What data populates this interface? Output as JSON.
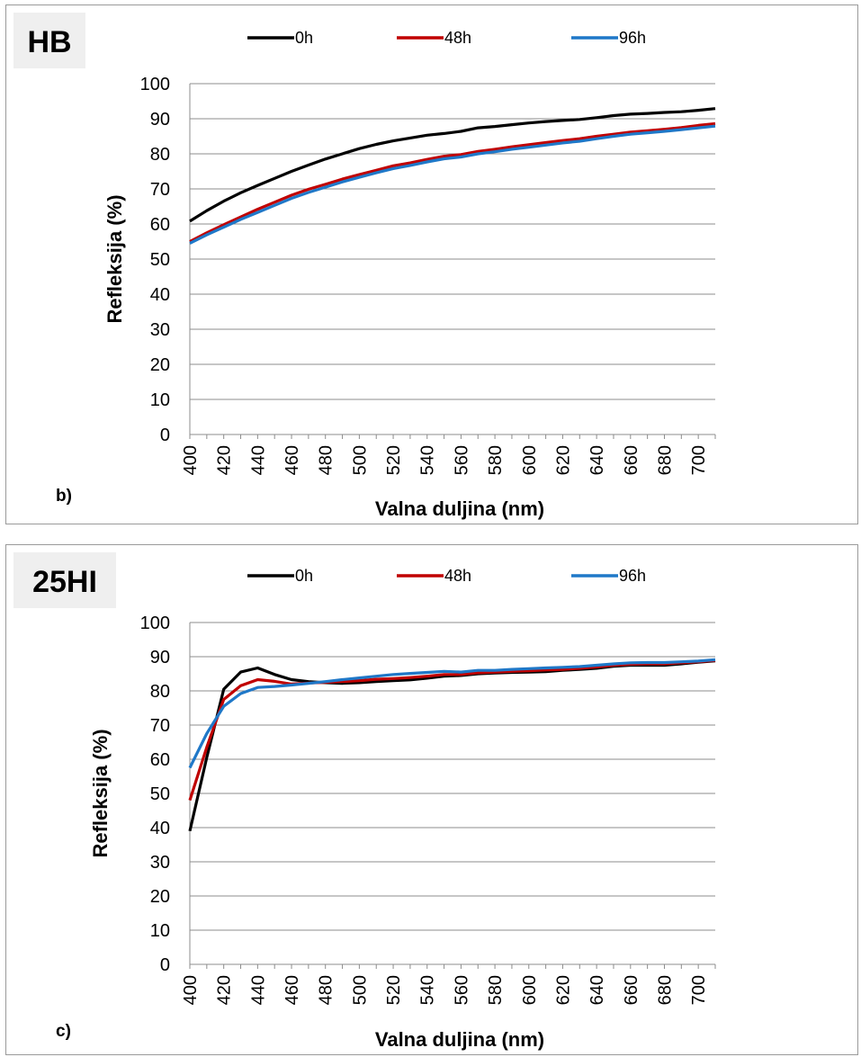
{
  "chart_data": [
    {
      "type": "line",
      "panel_label": "b)",
      "tag": "HB",
      "title": "",
      "xlabel": "Valna duljina (nm)",
      "ylabel": "Refleksija (%)",
      "ylim": [
        0,
        100
      ],
      "yticks": [
        0,
        10,
        20,
        30,
        40,
        50,
        60,
        70,
        80,
        90,
        100
      ],
      "xticks": [
        400,
        420,
        440,
        460,
        480,
        500,
        520,
        540,
        560,
        580,
        600,
        620,
        640,
        660,
        680,
        700
      ],
      "x": [
        400,
        410,
        420,
        430,
        440,
        450,
        460,
        470,
        480,
        490,
        500,
        510,
        520,
        530,
        540,
        550,
        560,
        570,
        580,
        590,
        600,
        610,
        620,
        630,
        640,
        650,
        660,
        670,
        680,
        690,
        700,
        710
      ],
      "grid": true,
      "legend_position": "top",
      "series": [
        {
          "name": "0h",
          "color": "#000000",
          "values": [
            60.8,
            63.8,
            66.5,
            68.9,
            71.0,
            73.0,
            75.0,
            76.8,
            78.5,
            80.0,
            81.5,
            82.7,
            83.7,
            84.5,
            85.3,
            85.8,
            86.4,
            87.4,
            87.8,
            88.3,
            88.8,
            89.2,
            89.5,
            89.8,
            90.3,
            90.9,
            91.3,
            91.5,
            91.8,
            92.0,
            92.4,
            92.9
          ]
        },
        {
          "name": "48h",
          "color": "#c00000",
          "values": [
            55.0,
            57.5,
            59.8,
            62.0,
            64.2,
            66.2,
            68.2,
            69.9,
            71.3,
            72.8,
            74.1,
            75.3,
            76.6,
            77.4,
            78.4,
            79.3,
            79.8,
            80.7,
            81.3,
            82.0,
            82.6,
            83.2,
            83.8,
            84.3,
            85.0,
            85.6,
            86.2,
            86.6,
            87.0,
            87.5,
            88.1,
            88.6
          ]
        },
        {
          "name": "96h",
          "color": "#1f78c8",
          "values": [
            54.5,
            56.9,
            59.1,
            61.3,
            63.3,
            65.3,
            67.3,
            69.0,
            70.5,
            72.0,
            73.3,
            74.6,
            75.8,
            76.7,
            77.7,
            78.6,
            79.1,
            80.0,
            80.6,
            81.3,
            81.9,
            82.5,
            83.1,
            83.6,
            84.3,
            85.0,
            85.6,
            86.0,
            86.4,
            86.9,
            87.4,
            87.9
          ]
        }
      ]
    },
    {
      "type": "line",
      "panel_label": "c)",
      "tag": "25HI",
      "title": "",
      "xlabel": "Valna duljina (nm)",
      "ylabel": "Refleksija (%)",
      "ylim": [
        0,
        100
      ],
      "yticks": [
        0,
        10,
        20,
        30,
        40,
        50,
        60,
        70,
        80,
        90,
        100
      ],
      "xticks": [
        400,
        420,
        440,
        460,
        480,
        500,
        520,
        540,
        560,
        580,
        600,
        620,
        640,
        660,
        680,
        700
      ],
      "x": [
        400,
        410,
        420,
        430,
        440,
        450,
        460,
        470,
        480,
        490,
        500,
        510,
        520,
        530,
        540,
        550,
        560,
        570,
        580,
        590,
        600,
        610,
        620,
        630,
        640,
        650,
        660,
        670,
        680,
        690,
        700,
        710
      ],
      "grid": true,
      "legend_position": "top",
      "series": [
        {
          "name": "0h",
          "color": "#000000",
          "values": [
            39.0,
            60.5,
            80.5,
            85.5,
            86.7,
            84.8,
            83.3,
            82.7,
            82.4,
            82.2,
            82.4,
            82.7,
            83.0,
            83.2,
            83.7,
            84.3,
            84.5,
            85.0,
            85.2,
            85.4,
            85.5,
            85.6,
            86.0,
            86.3,
            86.6,
            87.2,
            87.5,
            87.5,
            87.5,
            87.9,
            88.4,
            88.8
          ]
        },
        {
          "name": "48h",
          "color": "#c00000",
          "values": [
            48.0,
            63.5,
            77.5,
            81.5,
            83.3,
            82.8,
            82.0,
            82.3,
            82.5,
            82.7,
            83.0,
            83.4,
            83.6,
            83.9,
            84.3,
            84.8,
            84.8,
            85.3,
            85.5,
            85.7,
            85.9,
            86.1,
            86.3,
            86.6,
            87.0,
            87.5,
            87.8,
            87.9,
            87.9,
            88.2,
            88.5,
            88.9
          ]
        },
        {
          "name": "96h",
          "color": "#1f78c8",
          "values": [
            57.5,
            67.5,
            75.5,
            79.2,
            81.0,
            81.3,
            81.7,
            82.2,
            82.7,
            83.3,
            83.8,
            84.3,
            84.8,
            85.1,
            85.4,
            85.7,
            85.5,
            86.0,
            86.0,
            86.3,
            86.5,
            86.7,
            86.9,
            87.1,
            87.5,
            87.9,
            88.2,
            88.3,
            88.3,
            88.5,
            88.7,
            89.1
          ]
        }
      ]
    }
  ]
}
